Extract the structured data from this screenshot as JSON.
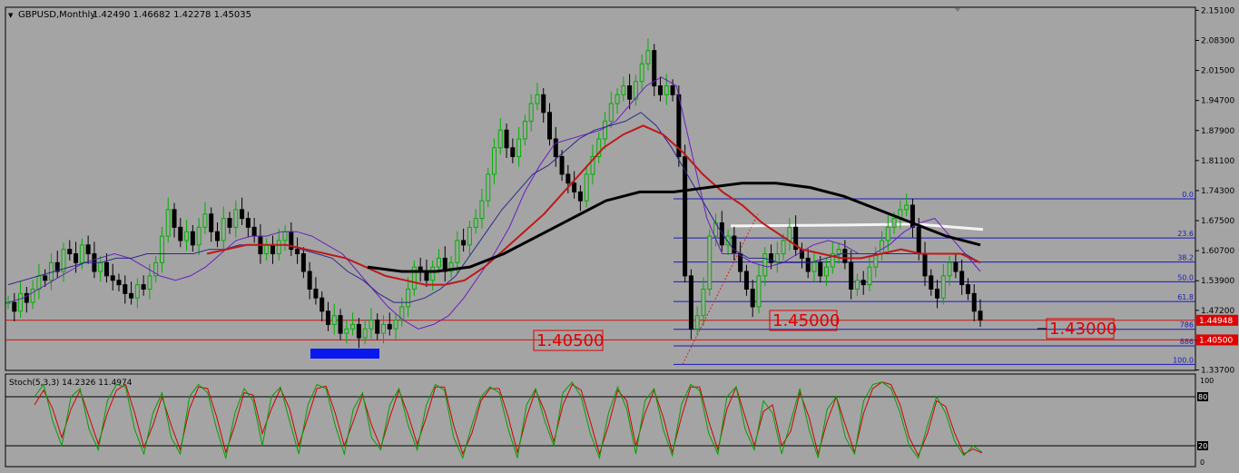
{
  "chart_data": {
    "type": "candlestick",
    "symbol": "GBPUSD,Monthly",
    "ohlc_readout": "1.42490 1.46682 1.42278 1.45035",
    "price_axis": {
      "range": [
        1.336,
        2.158
      ],
      "ticks": [
        "2.15100",
        "2.08300",
        "2.01500",
        "1.94700",
        "1.87900",
        "1.81100",
        "1.74300",
        "1.67500",
        "1.60700",
        "1.53900",
        "1.47200",
        "1.40400",
        "1.33700"
      ]
    },
    "colors": {
      "background": "#a4a4a4",
      "bull_candle": "#00b000",
      "bear_candle": "#000000",
      "ma_fast": "#6a1fbf",
      "ma_mid": "#2a2a8a",
      "ma_red": "#c01818",
      "ma_long": "#000000",
      "fib": "#1a1ab8",
      "stoch_main": "#00a000",
      "stoch_signal": "#d00000",
      "label_red": "#e00000",
      "support_box": "#0a18f0"
    },
    "candles_close": [
      1.49,
      1.47,
      1.51,
      1.49,
      1.52,
      1.55,
      1.54,
      1.58,
      1.56,
      1.61,
      1.6,
      1.58,
      1.62,
      1.6,
      1.56,
      1.58,
      1.55,
      1.54,
      1.53,
      1.51,
      1.5,
      1.53,
      1.52,
      1.55,
      1.58,
      1.64,
      1.7,
      1.66,
      1.63,
      1.65,
      1.62,
      1.66,
      1.69,
      1.65,
      1.63,
      1.68,
      1.66,
      1.7,
      1.68,
      1.66,
      1.64,
      1.6,
      1.62,
      1.6,
      1.63,
      1.65,
      1.61,
      1.6,
      1.56,
      1.52,
      1.5,
      1.47,
      1.44,
      1.46,
      1.42,
      1.43,
      1.44,
      1.41,
      1.43,
      1.45,
      1.42,
      1.44,
      1.43,
      1.45,
      1.48,
      1.52,
      1.57,
      1.56,
      1.54,
      1.57,
      1.59,
      1.56,
      1.58,
      1.63,
      1.62,
      1.66,
      1.68,
      1.72,
      1.78,
      1.84,
      1.88,
      1.84,
      1.82,
      1.86,
      1.9,
      1.94,
      1.96,
      1.92,
      1.86,
      1.82,
      1.78,
      1.76,
      1.74,
      1.72,
      1.78,
      1.82,
      1.86,
      1.9,
      1.94,
      1.96,
      1.98,
      1.95,
      1.99,
      2.03,
      2.06,
      1.98,
      1.96,
      1.98,
      1.96,
      1.82,
      1.55,
      1.43,
      1.46,
      1.52,
      1.64,
      1.67,
      1.62,
      1.64,
      1.6,
      1.56,
      1.52,
      1.48,
      1.55,
      1.6,
      1.58,
      1.6,
      1.63,
      1.66,
      1.61,
      1.59,
      1.56,
      1.58,
      1.55,
      1.57,
      1.6,
      1.61,
      1.58,
      1.52,
      1.54,
      1.53,
      1.57,
      1.6,
      1.63,
      1.66,
      1.68,
      1.7,
      1.71,
      1.66,
      1.6,
      1.55,
      1.52,
      1.5,
      1.55,
      1.58,
      1.56,
      1.53,
      1.51,
      1.47,
      1.45
    ],
    "moving_averages": [
      {
        "role": "fast",
        "values": [
          1.49,
          1.5,
          1.52,
          1.54,
          1.56,
          1.58,
          1.59,
          1.6,
          1.59,
          1.57,
          1.55,
          1.54,
          1.55,
          1.57,
          1.6,
          1.63,
          1.64,
          1.64,
          1.65,
          1.65,
          1.64,
          1.62,
          1.6,
          1.56,
          1.52,
          1.48,
          1.45,
          1.43,
          1.44,
          1.46,
          1.5,
          1.55,
          1.6,
          1.66,
          1.74,
          1.8,
          1.85,
          1.86,
          1.87,
          1.88,
          1.9,
          1.94,
          1.98,
          2.0,
          1.98,
          1.83,
          1.68,
          1.6,
          1.6,
          1.58,
          1.57,
          1.58,
          1.6,
          1.62,
          1.63,
          1.62,
          1.6,
          1.6,
          1.62,
          1.65,
          1.67,
          1.68,
          1.64,
          1.6,
          1.56
        ]
      },
      {
        "role": "mid",
        "values": [
          1.53,
          1.54,
          1.55,
          1.56,
          1.57,
          1.58,
          1.58,
          1.59,
          1.59,
          1.6,
          1.6,
          1.6,
          1.6,
          1.61,
          1.61,
          1.62,
          1.62,
          1.62,
          1.62,
          1.61,
          1.6,
          1.59,
          1.56,
          1.54,
          1.51,
          1.49,
          1.49,
          1.5,
          1.52,
          1.55,
          1.6,
          1.65,
          1.7,
          1.74,
          1.78,
          1.8,
          1.83,
          1.86,
          1.88,
          1.89,
          1.9,
          1.92,
          1.89,
          1.84,
          1.78,
          1.72,
          1.66,
          1.61,
          1.59,
          1.59,
          1.58,
          1.58,
          1.58,
          1.59,
          1.6,
          1.6,
          1.6,
          1.6,
          1.6,
          1.6,
          1.6,
          1.6,
          1.6,
          1.58
        ]
      },
      {
        "role": "red",
        "values": [
          1.6,
          1.61,
          1.62,
          1.62,
          1.62,
          1.61,
          1.6,
          1.59,
          1.57,
          1.55,
          1.54,
          1.53,
          1.53,
          1.54,
          1.57,
          1.61,
          1.65,
          1.69,
          1.74,
          1.79,
          1.84,
          1.87,
          1.89,
          1.87,
          1.83,
          1.78,
          1.74,
          1.71,
          1.67,
          1.64,
          1.61,
          1.6,
          1.59,
          1.59,
          1.6,
          1.61,
          1.6,
          1.6,
          1.6,
          1.58
        ]
      },
      {
        "role": "long",
        "values": [
          1.57,
          1.56,
          1.56,
          1.57,
          1.6,
          1.64,
          1.68,
          1.72,
          1.74,
          1.74,
          1.75,
          1.76,
          1.76,
          1.75,
          1.73,
          1.7,
          1.67,
          1.64,
          1.62
        ]
      }
    ],
    "fibonacci": {
      "levels": [
        {
          "label": "0.0",
          "price": 1.7245
        },
        {
          "label": "23.6",
          "price": 1.6358
        },
        {
          "label": "38.2",
          "price": 1.5812
        },
        {
          "label": "50.0",
          "price": 1.5365
        },
        {
          "label": "61.8",
          "price": 1.492
        },
        {
          "label": "786",
          "price": 1.429
        },
        {
          "label": "886",
          "price": 1.3915
        },
        {
          "label": "100.0",
          "price": 1.3495
        }
      ]
    },
    "horizontal_lines": [
      {
        "price": 1.44948,
        "label": "1.44948"
      },
      {
        "price": 1.405,
        "label": "1.40500"
      }
    ],
    "annotations": [
      "1.40500",
      "1.45000",
      "1.43000"
    ],
    "stochastic": {
      "title": "Stoch(5,3,3) 14.2326 11.4974",
      "range": [
        0,
        100
      ],
      "levels": [
        "80",
        "20"
      ],
      "axis_labels": [
        "100",
        "80",
        "20",
        "0"
      ],
      "main_values": [
        80,
        95,
        50,
        20,
        80,
        90,
        40,
        15,
        75,
        95,
        92,
        40,
        10,
        60,
        85,
        30,
        10,
        80,
        95,
        85,
        40,
        5,
        60,
        90,
        75,
        20,
        80,
        92,
        50,
        10,
        70,
        95,
        90,
        45,
        10,
        65,
        85,
        30,
        15,
        70,
        90,
        45,
        15,
        70,
        95,
        88,
        30,
        5,
        45,
        80,
        92,
        85,
        40,
        5,
        70,
        90,
        50,
        20,
        85,
        98,
        80,
        35,
        5,
        60,
        92,
        65,
        10,
        75,
        90,
        40,
        8,
        70,
        95,
        88,
        35,
        10,
        80,
        92,
        40,
        15,
        75,
        60,
        10,
        50,
        90,
        40,
        5,
        65,
        80,
        30,
        10,
        75,
        95,
        98,
        90,
        60,
        20,
        5,
        45,
        80,
        60,
        25,
        8,
        20,
        12
      ],
      "signal_values": [
        70,
        88,
        65,
        30,
        65,
        88,
        55,
        22,
        60,
        88,
        95,
        60,
        18,
        45,
        80,
        45,
        15,
        65,
        92,
        90,
        55,
        12,
        45,
        85,
        82,
        35,
        65,
        90,
        65,
        20,
        55,
        90,
        93,
        60,
        20,
        50,
        82,
        45,
        18,
        55,
        88,
        58,
        22,
        55,
        92,
        92,
        45,
        10,
        35,
        75,
        90,
        90,
        55,
        12,
        55,
        88,
        62,
        25,
        70,
        95,
        88,
        50,
        10,
        45,
        88,
        75,
        20,
        60,
        88,
        55,
        12,
        55,
        92,
        92,
        50,
        15,
        65,
        92,
        55,
        20,
        62,
        70,
        20,
        38,
        85,
        55,
        10,
        50,
        80,
        45,
        12,
        60,
        90,
        98,
        95,
        70,
        30,
        8,
        35,
        75,
        68,
        35,
        10,
        16,
        11
      ]
    }
  }
}
